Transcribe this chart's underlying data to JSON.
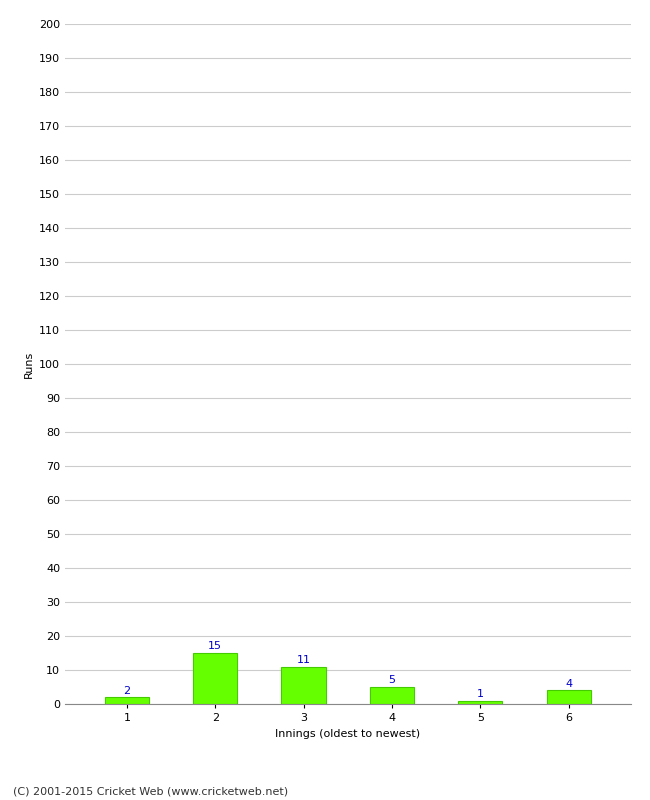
{
  "xlabel": "Innings (oldest to newest)",
  "ylabel": "Runs",
  "categories": [
    1,
    2,
    3,
    4,
    5,
    6
  ],
  "values": [
    2,
    15,
    11,
    5,
    1,
    4
  ],
  "bar_color": "#66ff00",
  "bar_edge_color": "#44cc00",
  "label_color": "#0000cc",
  "ylim": [
    0,
    200
  ],
  "yticks": [
    0,
    10,
    20,
    30,
    40,
    50,
    60,
    70,
    80,
    90,
    100,
    110,
    120,
    130,
    140,
    150,
    160,
    170,
    180,
    190,
    200
  ],
  "background_color": "#ffffff",
  "footer_text": "(C) 2001-2015 Cricket Web (www.cricketweb.net)",
  "grid_color": "#cccccc",
  "label_fontsize": 8,
  "axis_fontsize": 8,
  "footer_fontsize": 8
}
